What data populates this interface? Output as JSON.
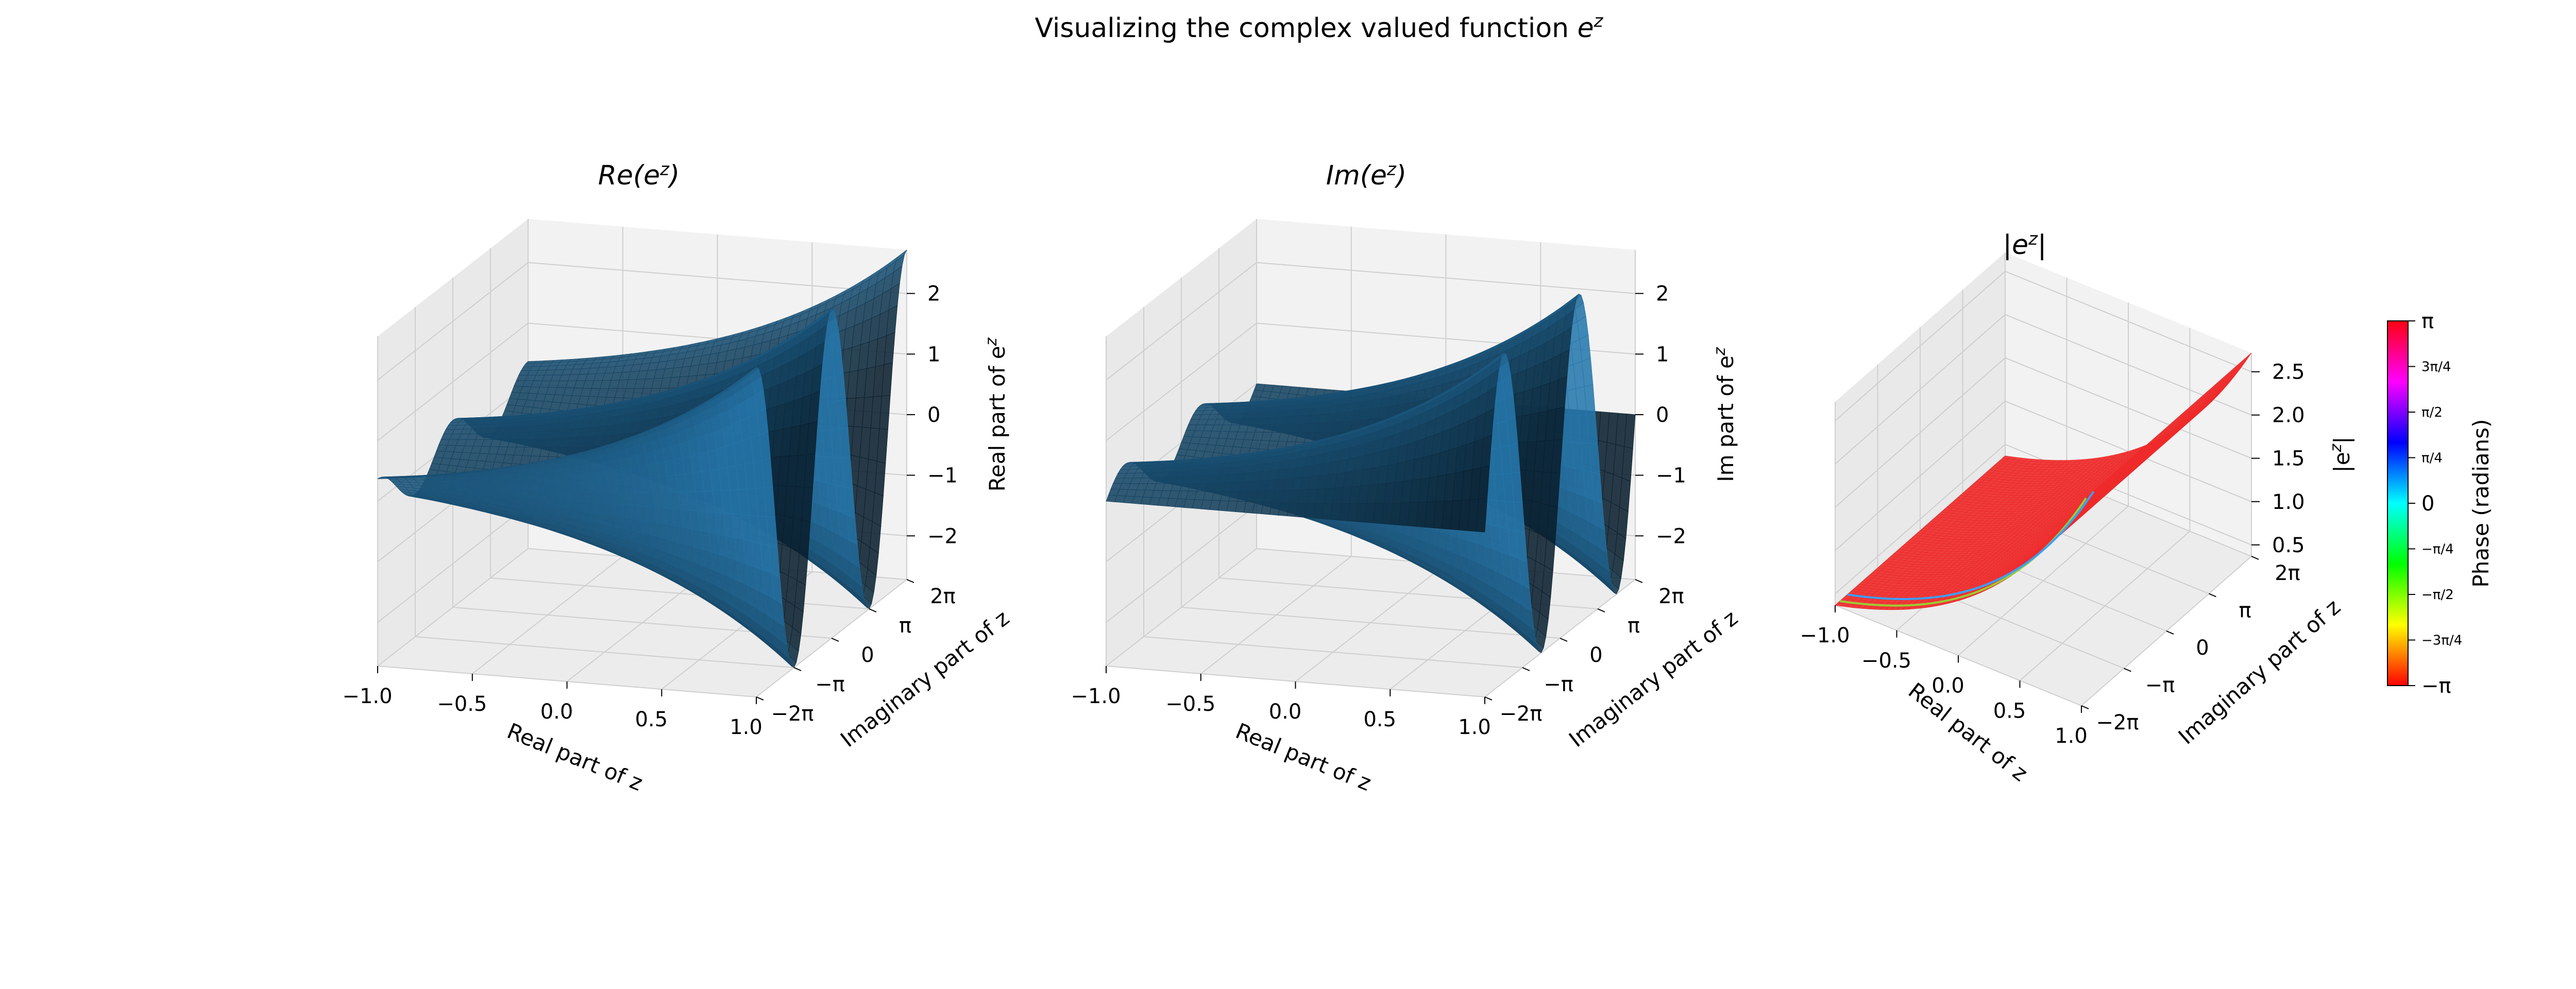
{
  "figure": {
    "title_text": "Visualizing the complex valued function ",
    "title_math": "e",
    "title_sup": "z"
  },
  "chart_data": [
    {
      "type": "surface3d",
      "title": "Re(e^z)",
      "title_parts": {
        "pre": "Re(e",
        "sup": "z",
        "post": ")"
      },
      "xlabel": "Real part of z",
      "ylabel": "Imaginary part of z",
      "zlabel": "Real part of e^z",
      "zlabel_parts": {
        "pre": "Real part of e",
        "sup": "z"
      },
      "xlim": [
        -1.0,
        1.0
      ],
      "ylim": [
        -6.2832,
        6.2832
      ],
      "zlim": [
        -2.72,
        2.72
      ],
      "xticks": [
        "−1.0",
        "−0.5",
        "0.0",
        "0.5",
        "1.0"
      ],
      "yticks": [
        "−2π",
        "−π",
        "0",
        "π",
        "2π"
      ],
      "zticks": [
        "−2",
        "−1",
        "0",
        "1",
        "2"
      ],
      "xtick_values": [
        -1.0,
        -0.5,
        0.0,
        0.5,
        1.0
      ],
      "ytick_values": [
        -6.2832,
        -3.1416,
        0,
        3.1416,
        6.2832
      ],
      "ztick_values": [
        -2,
        -1,
        0,
        1,
        2
      ],
      "function": "exp(x)*cos(y)",
      "surface_color": "#1f77b4"
    },
    {
      "type": "surface3d",
      "title": "Im(e^z)",
      "title_parts": {
        "pre": "Im(e",
        "sup": "z",
        "post": ")"
      },
      "xlabel": "Real part of z",
      "ylabel": "Imaginary part of z",
      "zlabel": "Im part of e^z",
      "zlabel_parts": {
        "pre": "Im part of e",
        "sup": "z"
      },
      "xlim": [
        -1.0,
        1.0
      ],
      "ylim": [
        -6.2832,
        6.2832
      ],
      "zlim": [
        -2.72,
        2.72
      ],
      "xticks": [
        "−1.0",
        "−0.5",
        "0.0",
        "0.5",
        "1.0"
      ],
      "yticks": [
        "−2π",
        "−π",
        "0",
        "π",
        "2π"
      ],
      "zticks": [
        "−2",
        "−1",
        "0",
        "1",
        "2"
      ],
      "xtick_values": [
        -1.0,
        -0.5,
        0.0,
        0.5,
        1.0
      ],
      "ytick_values": [
        -6.2832,
        -3.1416,
        0,
        3.1416,
        6.2832
      ],
      "ztick_values": [
        -2,
        -1,
        0,
        1,
        2
      ],
      "function": "exp(x)*sin(y)",
      "surface_color": "#1f77b4"
    },
    {
      "type": "surface3d",
      "title": "|e^z|",
      "title_parts": {
        "pre": "|e",
        "sup": "z",
        "post": "|"
      },
      "xlabel": "Real part of z",
      "ylabel": "Imaginary part of z",
      "zlabel": "|e^z|",
      "zlabel_parts": {
        "pre": "|e",
        "sup": "z",
        "post": "|"
      },
      "xlim": [
        -1.0,
        1.0
      ],
      "ylim": [
        -6.2832,
        6.2832
      ],
      "zlim": [
        0.3679,
        2.7183
      ],
      "xticks": [
        "−1.0",
        "−0.5",
        "0.0",
        "0.5",
        "1.0"
      ],
      "yticks": [
        "−2π",
        "−π",
        "0",
        "π",
        "2π"
      ],
      "zticks": [
        "0.5",
        "1.0",
        "1.5",
        "2.0",
        "2.5"
      ],
      "xtick_values": [
        -1.0,
        -0.5,
        0.0,
        0.5,
        1.0
      ],
      "ytick_values": [
        -6.2832,
        -3.1416,
        0,
        3.1416,
        6.2832
      ],
      "ztick_values": [
        0.5,
        1.0,
        1.5,
        2.0,
        2.5
      ],
      "function": "exp(x)",
      "facecolor_by": "phase",
      "colormap": "hsv"
    }
  ],
  "colorbar": {
    "label": "Phase (radians)",
    "range": [
      -3.1416,
      3.1416
    ],
    "colormap": "hsv",
    "ticks": [
      {
        "value": 3.1416,
        "label": "π"
      },
      {
        "value": 2.3562,
        "label": "3π/4"
      },
      {
        "value": 1.5708,
        "label": "π/2"
      },
      {
        "value": 0.7854,
        "label": "π/4"
      },
      {
        "value": 0,
        "label": "0"
      },
      {
        "value": -0.7854,
        "label": "−π/4"
      },
      {
        "value": -1.5708,
        "label": "−π/2"
      },
      {
        "value": -2.3562,
        "label": "−3π/4"
      },
      {
        "value": -3.1416,
        "label": "−π"
      }
    ]
  },
  "colors": {
    "pane_left": "#e9e9e9",
    "pane_back": "#f2f2f2",
    "pane_floor": "#ececec",
    "grid": "#cfcfcf",
    "surface_blue": "#1f77b4",
    "surface_red": "#ee2a2a"
  }
}
